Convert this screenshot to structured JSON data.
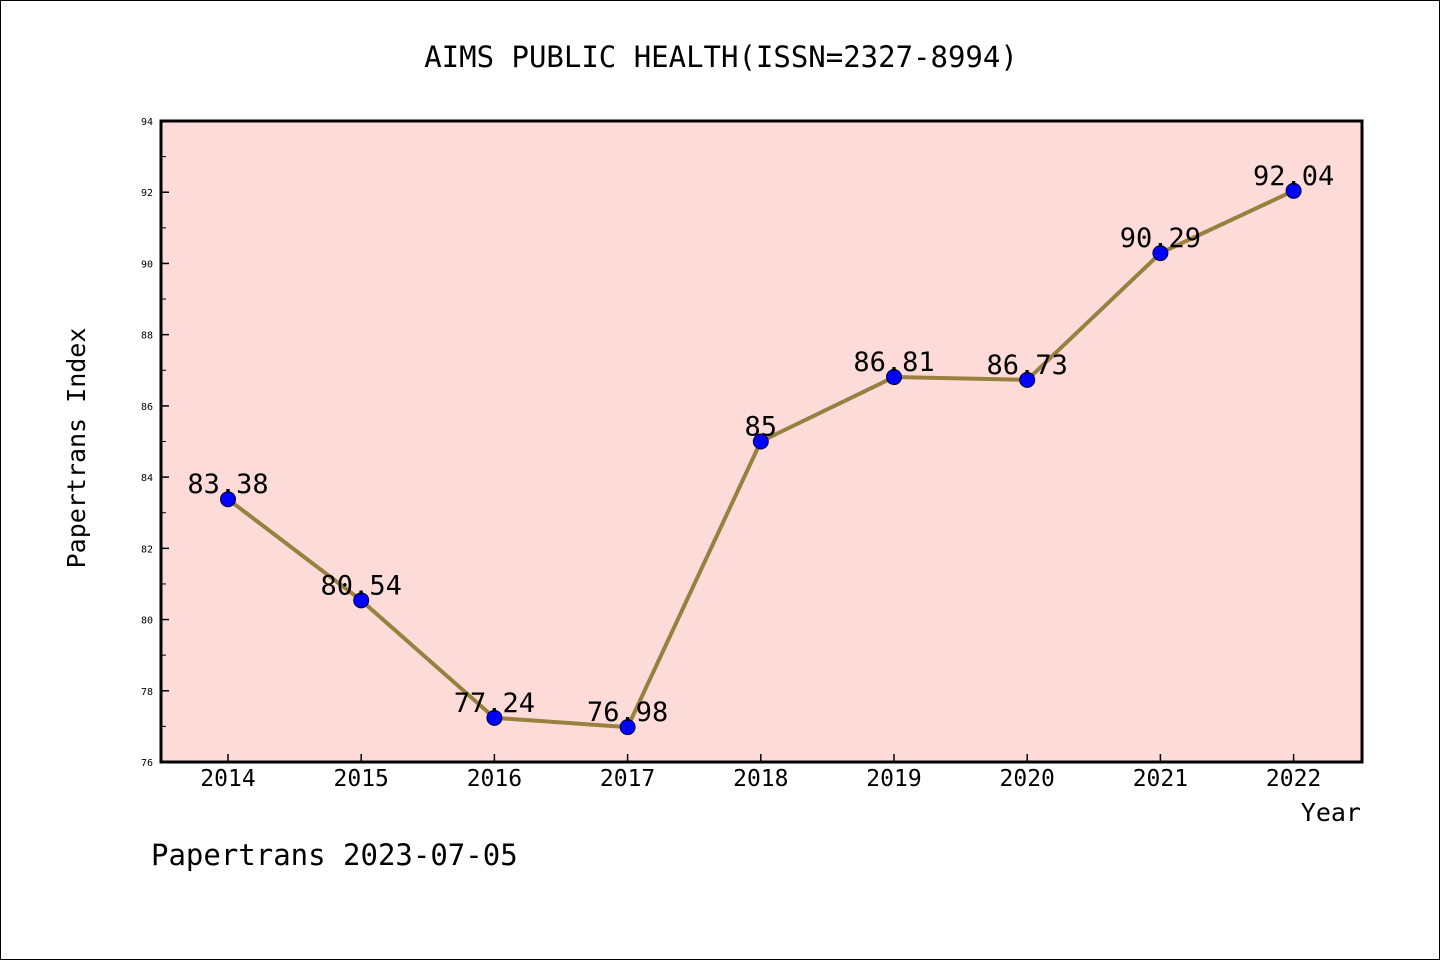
{
  "chart_data": {
    "type": "line",
    "title": "AIMS PUBLIC HEALTH(ISSN=2327-8994)",
    "xlabel": "Year",
    "ylabel": "Papertrans Index",
    "footer": "Papertrans 2023-07-05",
    "x": [
      "2014",
      "2015",
      "2016",
      "2017",
      "2018",
      "2019",
      "2020",
      "2021",
      "2022"
    ],
    "series": [
      {
        "values": [
          83.38,
          80.54,
          77.24,
          76.98,
          85,
          86.81,
          86.73,
          90.29,
          92.04
        ],
        "labels": [
          "83.38",
          "80.54",
          "77.24",
          "76.98",
          "85",
          "86.81",
          "86.73",
          "90.29",
          "92.04"
        ]
      }
    ],
    "ylim": [
      76,
      94
    ],
    "yticks": [
      "76",
      "78",
      "80",
      "82",
      "84",
      "86",
      "88",
      "90",
      "92",
      "94"
    ],
    "grid": false,
    "legend": "none",
    "colors": {
      "plot_background": "#fddbd8",
      "line": "#9a8040",
      "marker": "#0000ff",
      "axes": "#000000"
    }
  }
}
